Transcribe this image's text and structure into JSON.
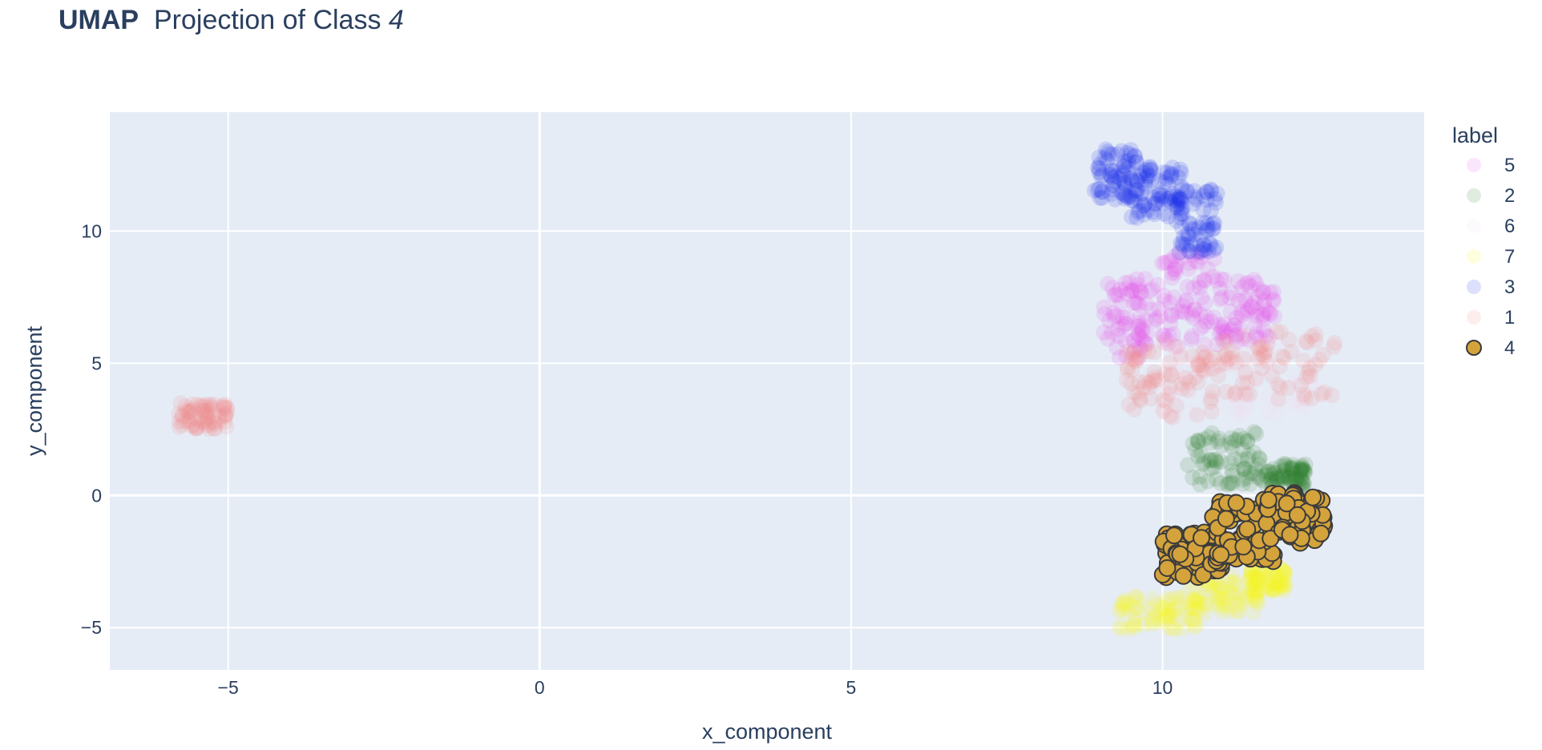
{
  "title": {
    "bold": "UMAP",
    "middle": "  Projection of Class ",
    "italic": "4"
  },
  "chart_data": {
    "type": "scatter",
    "title": "UMAP  Projection of Class 4",
    "xlabel": "x_component",
    "ylabel": "y_component",
    "xlim": [
      -6.9,
      14.2
    ],
    "ylim": [
      -6.6,
      14.5
    ],
    "xticks": [
      -5,
      0,
      5,
      10
    ],
    "yticks": [
      -5,
      0,
      5,
      10
    ],
    "xtick_labels": [
      "−5",
      "0",
      "5",
      "10"
    ],
    "ytick_labels": [
      "−5",
      "0",
      "5",
      "10"
    ],
    "grid": true,
    "background": "#e5ecf6",
    "legend": {
      "title": "label",
      "placement": "right"
    },
    "series": [
      {
        "name": "5",
        "color": "#e550e8",
        "opacity": 0.15,
        "highlighted": false,
        "clusters": [
          {
            "x": [
              9.05,
              9.9
            ],
            "y": [
              5.2,
              8.2
            ]
          },
          {
            "x": [
              9.9,
              10.9
            ],
            "y": [
              5.6,
              9.2
            ]
          },
          {
            "x": [
              10.9,
              11.8
            ],
            "y": [
              5.8,
              8.2
            ]
          }
        ]
      },
      {
        "name": "2",
        "color": "#2f7d2f",
        "opacity": 0.15,
        "highlighted": false,
        "clusters": [
          {
            "x": [
              10.4,
              11.6
            ],
            "y": [
              0.4,
              2.4
            ]
          },
          {
            "x": [
              11.6,
              12.3
            ],
            "y": [
              0.3,
              1.2
            ]
          }
        ]
      },
      {
        "name": "6",
        "color": "#f0e0f0",
        "opacity": 0.15,
        "highlighted": false,
        "clusters": [
          {
            "x": [
              10.0,
              12.5
            ],
            "y": [
              3.0,
              6.0
            ]
          }
        ]
      },
      {
        "name": "7",
        "color": "#f5f52a",
        "opacity": 0.15,
        "highlighted": false,
        "clusters": [
          {
            "x": [
              9.3,
              10.6
            ],
            "y": [
              -5.1,
              -3.8
            ]
          },
          {
            "x": [
              10.4,
              11.6
            ],
            "y": [
              -4.5,
              -3.0
            ]
          },
          {
            "x": [
              11.4,
              12.0
            ],
            "y": [
              -3.6,
              -2.7
            ]
          }
        ]
      },
      {
        "name": "3",
        "color": "#1a2ee8",
        "opacity": 0.15,
        "highlighted": false,
        "clusters": [
          {
            "x": [
              8.9,
              9.6
            ],
            "y": [
              11.2,
              13.1
            ]
          },
          {
            "x": [
              9.5,
              10.3
            ],
            "y": [
              10.5,
              12.6
            ]
          },
          {
            "x": [
              10.2,
              10.9
            ],
            "y": [
              9.2,
              11.6
            ]
          }
        ]
      },
      {
        "name": "1",
        "color": "#f28a8a",
        "opacity": 0.15,
        "highlighted": false,
        "clusters": [
          {
            "x": [
              -5.8,
              -5.0
            ],
            "y": [
              2.5,
              3.5
            ]
          },
          {
            "x": [
              9.4,
              10.8
            ],
            "y": [
              2.9,
              5.8
            ]
          },
          {
            "x": [
              10.8,
              12.8
            ],
            "y": [
              3.6,
              6.2
            ]
          }
        ]
      },
      {
        "name": "4",
        "color": "#d4a33c",
        "opacity": 1.0,
        "highlighted": true,
        "clusters": [
          {
            "x": [
              10.0,
              11.0
            ],
            "y": [
              -3.1,
              -1.4
            ]
          },
          {
            "x": [
              10.8,
              11.8
            ],
            "y": [
              -2.5,
              -0.2
            ]
          },
          {
            "x": [
              11.6,
              12.6
            ],
            "y": [
              -1.8,
              0.1
            ]
          }
        ]
      }
    ],
    "points_per_cluster": 70
  }
}
